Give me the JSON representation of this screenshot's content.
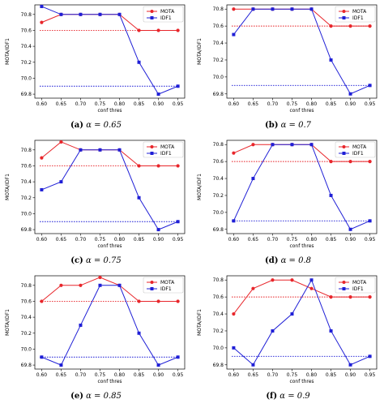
{
  "chart_data": [
    {
      "type": "line",
      "caption": {
        "letter": "(a)",
        "equation": "α = 0.65"
      },
      "xlabel": "conf thres",
      "ylabel": "MOTA/IDF1",
      "x": [
        0.6,
        0.65,
        0.7,
        0.75,
        0.8,
        0.85,
        0.9,
        0.95
      ],
      "xticks": [
        "0.60",
        "0.65",
        "0.70",
        "0.75",
        "0.80",
        "0.85",
        "0.90",
        "0.95"
      ],
      "ylim": [
        69.75,
        70.92
      ],
      "yticks": [
        "69.8",
        "70.0",
        "70.2",
        "70.4",
        "70.6",
        "70.8"
      ],
      "series": [
        {
          "name": "MOTA",
          "color": "#e8262b",
          "marker": "circle",
          "values": [
            70.7,
            70.8,
            70.8,
            70.8,
            70.8,
            70.6,
            70.6,
            70.6
          ]
        },
        {
          "name": "IDF1",
          "color": "#1f1fd6",
          "marker": "square",
          "values": [
            70.9,
            70.8,
            70.8,
            70.8,
            70.8,
            70.2,
            69.8,
            69.9
          ]
        }
      ],
      "reference_lines": [
        {
          "value": 70.6,
          "color": "#e8262b"
        },
        {
          "value": 69.9,
          "color": "#1f1fd6"
        }
      ],
      "legend": "top-right"
    },
    {
      "type": "line",
      "caption": {
        "letter": "(b)",
        "equation": "α = 0.7"
      },
      "xlabel": "conf thres",
      "ylabel": "MOTA/IDF1",
      "x": [
        0.6,
        0.65,
        0.7,
        0.75,
        0.8,
        0.85,
        0.9,
        0.95
      ],
      "xticks": [
        "0.60",
        "0.65",
        "0.70",
        "0.75",
        "0.80",
        "0.85",
        "0.90",
        "0.95"
      ],
      "ylim": [
        69.75,
        70.85
      ],
      "yticks": [
        "69.8",
        "70.0",
        "70.2",
        "70.4",
        "70.6",
        "70.8"
      ],
      "series": [
        {
          "name": "MOTA",
          "color": "#e8262b",
          "marker": "circle",
          "values": [
            70.8,
            70.8,
            70.8,
            70.8,
            70.8,
            70.6,
            70.6,
            70.6
          ]
        },
        {
          "name": "IDF1",
          "color": "#1f1fd6",
          "marker": "square",
          "values": [
            70.5,
            70.8,
            70.8,
            70.8,
            70.8,
            70.2,
            69.8,
            69.9
          ]
        }
      ],
      "reference_lines": [
        {
          "value": 70.6,
          "color": "#e8262b"
        },
        {
          "value": 69.9,
          "color": "#1f1fd6"
        }
      ],
      "legend": "top-right"
    },
    {
      "type": "line",
      "caption": {
        "letter": "(c)",
        "equation": "α = 0.75"
      },
      "xlabel": "conf thres",
      "ylabel": "MOTA/IDF1",
      "x": [
        0.6,
        0.65,
        0.7,
        0.75,
        0.8,
        0.85,
        0.9,
        0.95
      ],
      "xticks": [
        "0.60",
        "0.65",
        "0.70",
        "0.75",
        "0.80",
        "0.85",
        "0.90",
        "0.95"
      ],
      "ylim": [
        69.75,
        70.92
      ],
      "yticks": [
        "69.8",
        "70.0",
        "70.2",
        "70.4",
        "70.6",
        "70.8"
      ],
      "series": [
        {
          "name": "MOTA",
          "color": "#e8262b",
          "marker": "circle",
          "values": [
            70.7,
            70.9,
            70.8,
            70.8,
            70.8,
            70.6,
            70.6,
            70.6
          ]
        },
        {
          "name": "IDF1",
          "color": "#1f1fd6",
          "marker": "square",
          "values": [
            70.3,
            70.4,
            70.8,
            70.8,
            70.8,
            70.2,
            69.8,
            69.9
          ]
        }
      ],
      "reference_lines": [
        {
          "value": 70.6,
          "color": "#e8262b"
        },
        {
          "value": 69.9,
          "color": "#1f1fd6"
        }
      ],
      "legend": "top-right"
    },
    {
      "type": "line",
      "caption": {
        "letter": "(d)",
        "equation": "α = 0.8"
      },
      "xlabel": "conf thres",
      "ylabel": "MOTA/IDF1",
      "x": [
        0.6,
        0.65,
        0.7,
        0.75,
        0.8,
        0.85,
        0.9,
        0.95
      ],
      "xticks": [
        "0.60",
        "0.65",
        "0.70",
        "0.75",
        "0.80",
        "0.85",
        "0.90",
        "0.95"
      ],
      "ylim": [
        69.75,
        70.85
      ],
      "yticks": [
        "69.8",
        "70.0",
        "70.2",
        "70.4",
        "70.6",
        "70.8"
      ],
      "series": [
        {
          "name": "MOTA",
          "color": "#e8262b",
          "marker": "circle",
          "values": [
            70.7,
            70.8,
            70.8,
            70.8,
            70.8,
            70.6,
            70.6,
            70.6
          ]
        },
        {
          "name": "IDF1",
          "color": "#1f1fd6",
          "marker": "square",
          "values": [
            69.9,
            70.4,
            70.8,
            70.8,
            70.8,
            70.2,
            69.8,
            69.9
          ]
        }
      ],
      "reference_lines": [
        {
          "value": 70.6,
          "color": "#e8262b"
        },
        {
          "value": 69.9,
          "color": "#1f1fd6"
        }
      ],
      "legend": "top-right"
    },
    {
      "type": "line",
      "caption": {
        "letter": "(e)",
        "equation": "α = 0.85"
      },
      "xlabel": "conf thres",
      "ylabel": "MOTA/IDF1",
      "x": [
        0.6,
        0.65,
        0.7,
        0.75,
        0.8,
        0.85,
        0.9,
        0.95
      ],
      "xticks": [
        "0.60",
        "0.65",
        "0.70",
        "0.75",
        "0.80",
        "0.85",
        "0.90",
        "0.95"
      ],
      "ylim": [
        69.75,
        70.92
      ],
      "yticks": [
        "69.8",
        "70.0",
        "70.2",
        "70.4",
        "70.6",
        "70.8"
      ],
      "series": [
        {
          "name": "MOTA",
          "color": "#e8262b",
          "marker": "circle",
          "values": [
            70.6,
            70.8,
            70.8,
            70.9,
            70.8,
            70.6,
            70.6,
            70.6
          ]
        },
        {
          "name": "IDF1",
          "color": "#1f1fd6",
          "marker": "square",
          "values": [
            69.9,
            69.8,
            70.3,
            70.8,
            70.8,
            70.2,
            69.8,
            69.9
          ]
        }
      ],
      "reference_lines": [
        {
          "value": 70.6,
          "color": "#e8262b"
        },
        {
          "value": 69.9,
          "color": "#1f1fd6"
        }
      ],
      "legend": "top-right"
    },
    {
      "type": "line",
      "caption": {
        "letter": "(f)",
        "equation": "α = 0.9"
      },
      "xlabel": "conf thres",
      "ylabel": "MOTA/IDF1",
      "x": [
        0.6,
        0.65,
        0.7,
        0.75,
        0.8,
        0.85,
        0.9,
        0.95
      ],
      "xticks": [
        "0.60",
        "0.65",
        "0.70",
        "0.75",
        "0.80",
        "0.85",
        "0.90",
        "0.95"
      ],
      "ylim": [
        69.75,
        70.85
      ],
      "yticks": [
        "69.8",
        "70.0",
        "70.2",
        "70.4",
        "70.6",
        "70.8"
      ],
      "series": [
        {
          "name": "MOTA",
          "color": "#e8262b",
          "marker": "circle",
          "values": [
            70.4,
            70.7,
            70.8,
            70.8,
            70.7,
            70.6,
            70.6,
            70.6
          ]
        },
        {
          "name": "IDF1",
          "color": "#1f1fd6",
          "marker": "square",
          "values": [
            70.0,
            69.8,
            70.2,
            70.4,
            70.8,
            70.2,
            69.8,
            69.9
          ]
        }
      ],
      "reference_lines": [
        {
          "value": 70.6,
          "color": "#e8262b"
        },
        {
          "value": 69.9,
          "color": "#1f1fd6"
        }
      ],
      "legend": "top-right"
    }
  ]
}
